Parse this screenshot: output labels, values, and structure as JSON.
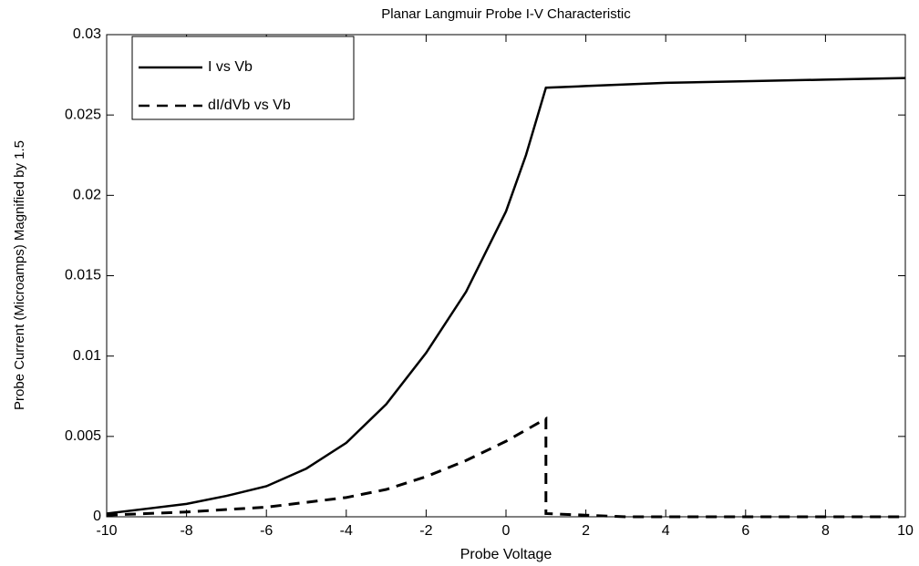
{
  "chart_data": {
    "type": "line",
    "title": "Planar Langmuir Probe I-V Characteristic",
    "xlabel": "Probe Voltage",
    "ylabel": "Probe Current (Microamps) Magnified by 1.5",
    "xlim": [
      -10,
      10
    ],
    "xticks": [
      -10,
      -8,
      -6,
      -4,
      -2,
      0,
      2,
      4,
      6,
      8,
      10
    ],
    "ylim": [
      0,
      0.03
    ],
    "yticks": [
      0,
      0.005,
      0.01,
      0.015,
      0.02,
      0.025,
      0.03
    ],
    "grid": false,
    "legend": "northwest",
    "series": [
      {
        "name": "I vs Vb",
        "color": "#000000",
        "dash": "solid",
        "x": [
          -10,
          -9,
          -8,
          -7,
          -6,
          -5,
          -4,
          -3,
          -2,
          -1,
          0,
          0.5,
          1,
          2,
          4,
          6,
          8,
          10
        ],
        "values": [
          0.0002,
          0.0005,
          0.0008,
          0.0013,
          0.0019,
          0.003,
          0.0046,
          0.007,
          0.0102,
          0.014,
          0.019,
          0.0225,
          0.0267,
          0.0268,
          0.027,
          0.0271,
          0.0272,
          0.0273
        ]
      },
      {
        "name": "dI/dVb vs Vb",
        "color": "#000000",
        "dash": "dashed",
        "x": [
          -10,
          -8,
          -6,
          -4,
          -3,
          -2,
          -1,
          0,
          0.5,
          1,
          1,
          2,
          3,
          10
        ],
        "values": [
          0.0001,
          0.0003,
          0.0006,
          0.0012,
          0.0017,
          0.0025,
          0.0035,
          0.0047,
          0.0054,
          0.0061,
          0.0002,
          0.0001,
          0,
          0
        ]
      }
    ]
  }
}
